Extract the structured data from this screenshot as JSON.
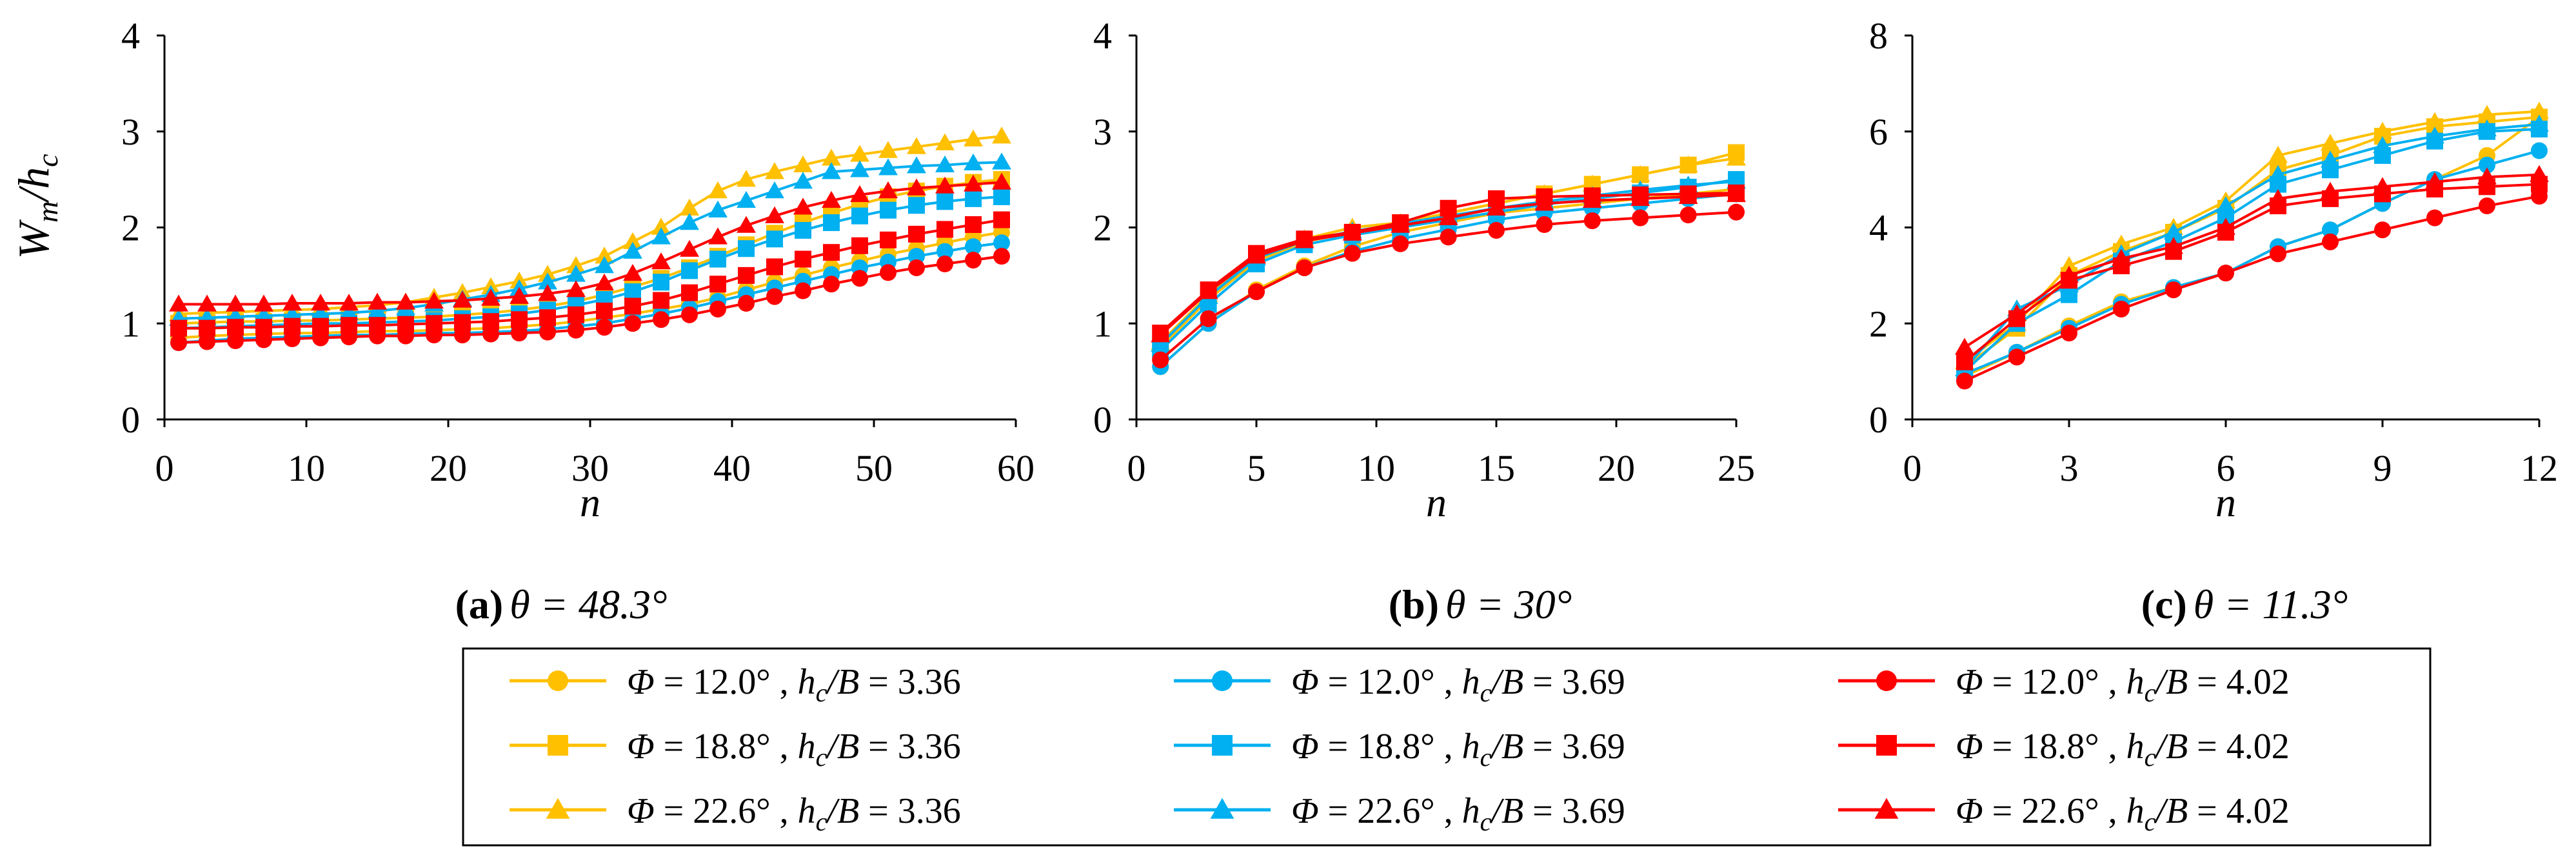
{
  "legend": {
    "entries": [
      {
        "phi": "12.0",
        "hcb": "3.36",
        "color": "#FFC000",
        "marker": "circle"
      },
      {
        "phi": "12.0",
        "hcb": "3.69",
        "color": "#00B0F0",
        "marker": "circle"
      },
      {
        "phi": "12.0",
        "hcb": "4.02",
        "color": "#FF0000",
        "marker": "circle"
      },
      {
        "phi": "18.8",
        "hcb": "3.36",
        "color": "#FFC000",
        "marker": "square"
      },
      {
        "phi": "18.8",
        "hcb": "3.69",
        "color": "#00B0F0",
        "marker": "square"
      },
      {
        "phi": "18.8",
        "hcb": "4.02",
        "color": "#FF0000",
        "marker": "square"
      },
      {
        "phi": "22.6",
        "hcb": "3.36",
        "color": "#FFC000",
        "marker": "triangle"
      },
      {
        "phi": "22.6",
        "hcb": "3.69",
        "color": "#00B0F0",
        "marker": "triangle"
      },
      {
        "phi": "22.6",
        "hcb": "4.02",
        "color": "#FF0000",
        "marker": "triangle"
      }
    ]
  },
  "chart_data": [
    {
      "type": "line",
      "panel_label": "(a)",
      "caption_prefix": "θ = 48.3°",
      "xlabel": "n",
      "ylabel": "W",
      "ylabel_sub": "m",
      "ylabel_den": "h",
      "ylabel_den_sub": "c",
      "xlim": [
        0,
        60
      ],
      "ylim": [
        0,
        4
      ],
      "xticks": [
        "0",
        "10",
        "20",
        "30",
        "40",
        "50",
        "60"
      ],
      "yticks": [
        "0",
        "1",
        "2",
        "3",
        "4"
      ],
      "x": [
        1,
        3,
        5,
        7,
        9,
        11,
        13,
        15,
        17,
        19,
        21,
        23,
        25,
        27,
        29,
        31,
        33,
        35,
        37,
        39,
        41,
        43,
        45,
        47,
        49,
        51,
        53,
        55,
        57,
        59
      ],
      "series": [
        {
          "name": "Φ = 12.0°, hc/B = 3.36",
          "color": "#FFC000",
          "marker": "circle",
          "values": [
            0.85,
            0.87,
            0.88,
            0.89,
            0.9,
            0.9,
            0.91,
            0.92,
            0.92,
            0.93,
            0.94,
            0.95,
            0.97,
            0.99,
            1.02,
            1.06,
            1.1,
            1.15,
            1.2,
            1.27,
            1.35,
            1.43,
            1.5,
            1.58,
            1.65,
            1.72,
            1.78,
            1.84,
            1.9,
            1.95
          ]
        },
        {
          "name": "Φ = 18.8°, hc/B = 3.36",
          "color": "#FFC000",
          "marker": "square",
          "values": [
            1.0,
            1.01,
            1.02,
            1.02,
            1.03,
            1.03,
            1.04,
            1.05,
            1.06,
            1.07,
            1.09,
            1.11,
            1.14,
            1.18,
            1.23,
            1.3,
            1.38,
            1.47,
            1.58,
            1.7,
            1.82,
            1.94,
            2.05,
            2.15,
            2.24,
            2.32,
            2.38,
            2.43,
            2.47,
            2.5
          ]
        },
        {
          "name": "Φ = 22.6°, hc/B = 3.36",
          "color": "#FFC000",
          "marker": "triangle",
          "values": [
            1.1,
            1.11,
            1.12,
            1.13,
            1.14,
            1.15,
            1.17,
            1.19,
            1.22,
            1.27,
            1.32,
            1.38,
            1.44,
            1.51,
            1.6,
            1.7,
            1.85,
            2.0,
            2.2,
            2.38,
            2.5,
            2.58,
            2.65,
            2.72,
            2.76,
            2.8,
            2.84,
            2.88,
            2.92,
            2.95
          ]
        },
        {
          "name": "Φ = 12.0°, hc/B = 3.69",
          "color": "#00B0F0",
          "marker": "circle",
          "values": [
            0.8,
            0.82,
            0.84,
            0.85,
            0.86,
            0.87,
            0.88,
            0.88,
            0.89,
            0.9,
            0.9,
            0.91,
            0.92,
            0.94,
            0.97,
            1.0,
            1.05,
            1.1,
            1.16,
            1.23,
            1.3,
            1.37,
            1.44,
            1.51,
            1.58,
            1.64,
            1.7,
            1.75,
            1.8,
            1.84
          ]
        },
        {
          "name": "Φ = 18.8°, hc/B = 3.69",
          "color": "#00B0F0",
          "marker": "square",
          "values": [
            0.95,
            0.96,
            0.97,
            0.98,
            0.99,
            1.0,
            1.0,
            1.01,
            1.02,
            1.03,
            1.05,
            1.07,
            1.1,
            1.14,
            1.19,
            1.25,
            1.33,
            1.43,
            1.55,
            1.67,
            1.78,
            1.88,
            1.97,
            2.05,
            2.12,
            2.18,
            2.23,
            2.27,
            2.3,
            2.32
          ]
        },
        {
          "name": "Φ = 22.6°, hc/B = 3.69",
          "color": "#00B0F0",
          "marker": "triangle",
          "values": [
            1.05,
            1.06,
            1.07,
            1.08,
            1.09,
            1.1,
            1.11,
            1.13,
            1.16,
            1.2,
            1.25,
            1.3,
            1.36,
            1.43,
            1.51,
            1.6,
            1.75,
            1.9,
            2.05,
            2.18,
            2.28,
            2.38,
            2.48,
            2.58,
            2.6,
            2.62,
            2.64,
            2.65,
            2.67,
            2.68
          ]
        },
        {
          "name": "Φ = 12.0°, hc/B = 4.02",
          "color": "#FF0000",
          "marker": "circle",
          "values": [
            0.8,
            0.81,
            0.82,
            0.83,
            0.84,
            0.85,
            0.86,
            0.87,
            0.87,
            0.88,
            0.88,
            0.89,
            0.9,
            0.91,
            0.93,
            0.96,
            1.0,
            1.04,
            1.09,
            1.15,
            1.21,
            1.28,
            1.34,
            1.41,
            1.47,
            1.53,
            1.58,
            1.62,
            1.66,
            1.7
          ]
        },
        {
          "name": "Φ = 18.8°, hc/B = 4.02",
          "color": "#FF0000",
          "marker": "square",
          "values": [
            0.95,
            0.95,
            0.96,
            0.96,
            0.97,
            0.97,
            0.98,
            0.98,
            0.99,
            1.0,
            1.01,
            1.02,
            1.04,
            1.06,
            1.09,
            1.13,
            1.18,
            1.24,
            1.32,
            1.41,
            1.5,
            1.59,
            1.67,
            1.74,
            1.81,
            1.87,
            1.93,
            1.98,
            2.03,
            2.08
          ]
        },
        {
          "name": "Φ = 22.6°, hc/B = 4.02",
          "color": "#FF0000",
          "marker": "triangle",
          "values": [
            1.2,
            1.2,
            1.2,
            1.2,
            1.21,
            1.21,
            1.21,
            1.22,
            1.22,
            1.23,
            1.24,
            1.26,
            1.28,
            1.31,
            1.35,
            1.42,
            1.52,
            1.64,
            1.77,
            1.9,
            2.02,
            2.12,
            2.21,
            2.28,
            2.34,
            2.38,
            2.41,
            2.43,
            2.45,
            2.47
          ]
        }
      ]
    },
    {
      "type": "line",
      "panel_label": "(b)",
      "caption_prefix": "θ = 30°",
      "xlabel": "n",
      "xlim": [
        0,
        25
      ],
      "ylim": [
        0,
        4
      ],
      "xticks": [
        "0",
        "5",
        "10",
        "15",
        "20",
        "25"
      ],
      "yticks": [
        "0",
        "1",
        "2",
        "3",
        "4"
      ],
      "x": [
        1,
        3,
        5,
        7,
        9,
        11,
        13,
        15,
        17,
        19,
        21,
        23,
        25
      ],
      "series": [
        {
          "name": "Φ = 12.0°, hc/B = 3.36",
          "color": "#FFC000",
          "marker": "circle",
          "values": [
            0.55,
            1.0,
            1.35,
            1.6,
            1.8,
            1.95,
            2.05,
            2.15,
            2.2,
            2.25,
            2.3,
            2.35,
            2.4
          ]
        },
        {
          "name": "Φ = 18.8°, hc/B = 3.36",
          "color": "#FFC000",
          "marker": "square",
          "values": [
            0.75,
            1.25,
            1.65,
            1.85,
            1.95,
            2.05,
            2.15,
            2.25,
            2.35,
            2.45,
            2.55,
            2.65,
            2.78
          ]
        },
        {
          "name": "Φ = 22.6°, hc/B = 3.36",
          "color": "#FFC000",
          "marker": "triangle",
          "values": [
            0.8,
            1.3,
            1.7,
            1.88,
            2.0,
            2.05,
            2.15,
            2.25,
            2.35,
            2.45,
            2.55,
            2.65,
            2.72
          ]
        },
        {
          "name": "Φ = 12.0°, hc/B = 3.69",
          "color": "#00B0F0",
          "marker": "circle",
          "values": [
            0.55,
            1.0,
            1.33,
            1.58,
            1.75,
            1.88,
            1.98,
            2.08,
            2.15,
            2.2,
            2.25,
            2.3,
            2.35
          ]
        },
        {
          "name": "Φ = 18.8°, hc/B = 3.69",
          "color": "#00B0F0",
          "marker": "square",
          "values": [
            0.72,
            1.2,
            1.62,
            1.82,
            1.92,
            2.0,
            2.08,
            2.16,
            2.24,
            2.3,
            2.36,
            2.42,
            2.5
          ]
        },
        {
          "name": "Φ = 22.6°, hc/B = 3.69",
          "color": "#00B0F0",
          "marker": "triangle",
          "values": [
            0.78,
            1.28,
            1.68,
            1.86,
            1.96,
            2.04,
            2.12,
            2.2,
            2.27,
            2.33,
            2.39,
            2.44,
            2.48
          ]
        },
        {
          "name": "Φ = 12.0°, hc/B = 4.02",
          "color": "#FF0000",
          "marker": "circle",
          "values": [
            0.62,
            1.05,
            1.33,
            1.58,
            1.73,
            1.83,
            1.9,
            1.97,
            2.03,
            2.07,
            2.1,
            2.13,
            2.16
          ]
        },
        {
          "name": "Φ = 18.8°, hc/B = 4.02",
          "color": "#FF0000",
          "marker": "square",
          "values": [
            0.9,
            1.35,
            1.73,
            1.88,
            1.95,
            2.05,
            2.2,
            2.3,
            2.32,
            2.33,
            2.34,
            2.35,
            2.36
          ]
        },
        {
          "name": "Φ = 22.6°, hc/B = 4.02",
          "color": "#FF0000",
          "marker": "triangle",
          "values": [
            0.88,
            1.33,
            1.7,
            1.86,
            1.94,
            2.02,
            2.1,
            2.2,
            2.25,
            2.28,
            2.3,
            2.32,
            2.34
          ]
        }
      ]
    },
    {
      "type": "line",
      "panel_label": "(c)",
      "caption_prefix": "θ = 11.3°",
      "xlabel": "n",
      "xlim": [
        0,
        12
      ],
      "ylim": [
        0,
        8
      ],
      "xticks": [
        "0",
        "3",
        "6",
        "9",
        "12"
      ],
      "yticks": [
        "0",
        "2",
        "4",
        "6",
        "8"
      ],
      "x": [
        1,
        2,
        3,
        4,
        5,
        6,
        7,
        8,
        9,
        10,
        11,
        12
      ],
      "series": [
        {
          "name": "Φ = 12.0°, hc/B = 3.36",
          "color": "#FFC000",
          "marker": "circle",
          "values": [
            0.9,
            1.4,
            1.95,
            2.45,
            2.75,
            3.05,
            3.6,
            3.95,
            4.5,
            5.0,
            5.5,
            6.3
          ]
        },
        {
          "name": "Φ = 18.8°, hc/B = 3.36",
          "color": "#FFC000",
          "marker": "square",
          "values": [
            1.1,
            1.9,
            3.0,
            3.5,
            3.9,
            4.4,
            5.2,
            5.5,
            5.9,
            6.1,
            6.2,
            6.3
          ]
        },
        {
          "name": "Φ = 22.6°, hc/B = 3.36",
          "color": "#FFC000",
          "marker": "triangle",
          "values": [
            1.2,
            2.0,
            3.2,
            3.65,
            4.0,
            4.55,
            5.5,
            5.75,
            6.0,
            6.2,
            6.35,
            6.42
          ]
        },
        {
          "name": "Φ = 12.0°, hc/B = 3.69",
          "color": "#00B0F0",
          "marker": "circle",
          "values": [
            0.95,
            1.4,
            1.9,
            2.4,
            2.75,
            3.05,
            3.6,
            3.95,
            4.5,
            5.0,
            5.3,
            5.6
          ]
        },
        {
          "name": "Φ = 18.8°, hc/B = 3.69",
          "color": "#00B0F0",
          "marker": "square",
          "values": [
            1.0,
            2.0,
            2.6,
            3.3,
            3.7,
            4.2,
            4.9,
            5.2,
            5.5,
            5.8,
            6.0,
            6.05
          ]
        },
        {
          "name": "Φ = 22.6°, hc/B = 3.69",
          "color": "#00B0F0",
          "marker": "triangle",
          "values": [
            1.05,
            2.3,
            2.8,
            3.45,
            3.9,
            4.45,
            5.1,
            5.4,
            5.7,
            5.9,
            6.05,
            6.15
          ]
        },
        {
          "name": "Φ = 12.0°, hc/B = 4.02",
          "color": "#FF0000",
          "marker": "circle",
          "values": [
            0.8,
            1.3,
            1.8,
            2.3,
            2.7,
            3.05,
            3.45,
            3.7,
            3.95,
            4.2,
            4.45,
            4.65
          ]
        },
        {
          "name": "Φ = 18.8°, hc/B = 4.02",
          "color": "#FF0000",
          "marker": "square",
          "values": [
            1.2,
            2.1,
            2.9,
            3.2,
            3.5,
            3.9,
            4.45,
            4.6,
            4.7,
            4.8,
            4.85,
            4.9
          ]
        },
        {
          "name": "Φ = 22.6°, hc/B = 4.02",
          "color": "#FF0000",
          "marker": "triangle",
          "values": [
            1.5,
            2.2,
            3.0,
            3.35,
            3.6,
            4.0,
            4.6,
            4.75,
            4.85,
            4.95,
            5.05,
            5.1
          ]
        }
      ]
    }
  ]
}
